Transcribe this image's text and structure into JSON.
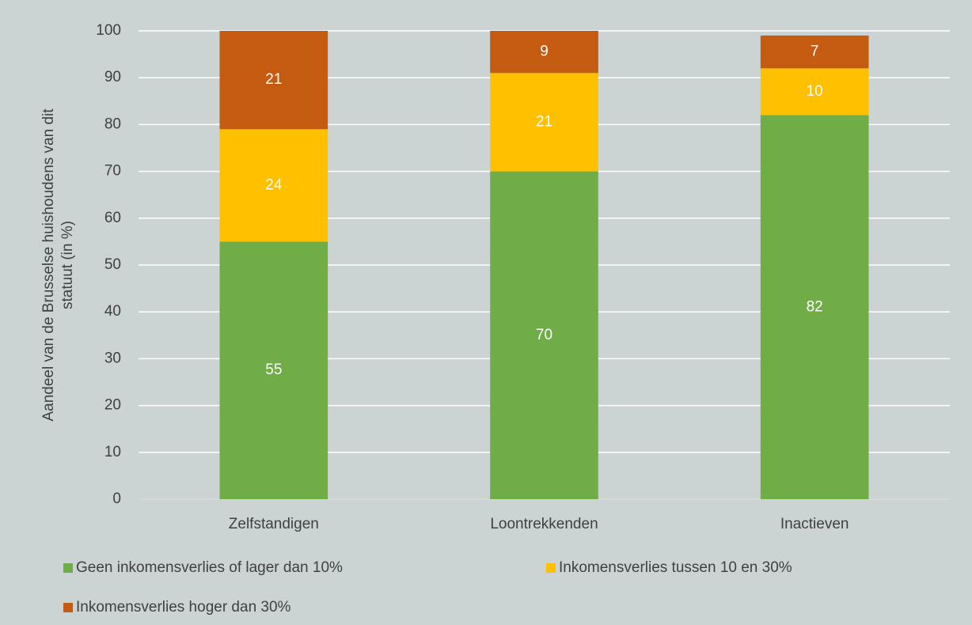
{
  "chart_data": {
    "type": "stacked_bar",
    "ylabel": [
      "Aandeel van de Brusselse huishoudens van dit",
      "statuut (in %)"
    ],
    "categories": [
      "Zelfstandigen",
      "Loontrekkenden",
      "Inactieven"
    ],
    "series": [
      {
        "name": "Geen inkomensverlies of lager dan 10%",
        "color": "#70ad47",
        "values": [
          55,
          70,
          82
        ]
      },
      {
        "name": "Inkomensverlies tussen 10 en 30%",
        "color": "#ffc000",
        "values": [
          24,
          21,
          10
        ]
      },
      {
        "name": "Inkomensverlies hoger dan 30%",
        "color": "#c55a11",
        "values": [
          21,
          9,
          7
        ]
      }
    ],
    "ylim": [
      0,
      100
    ],
    "yticks": [
      0,
      10,
      20,
      30,
      40,
      50,
      60,
      70,
      80,
      90,
      100
    ],
    "grid": true,
    "legend": "bottom"
  }
}
